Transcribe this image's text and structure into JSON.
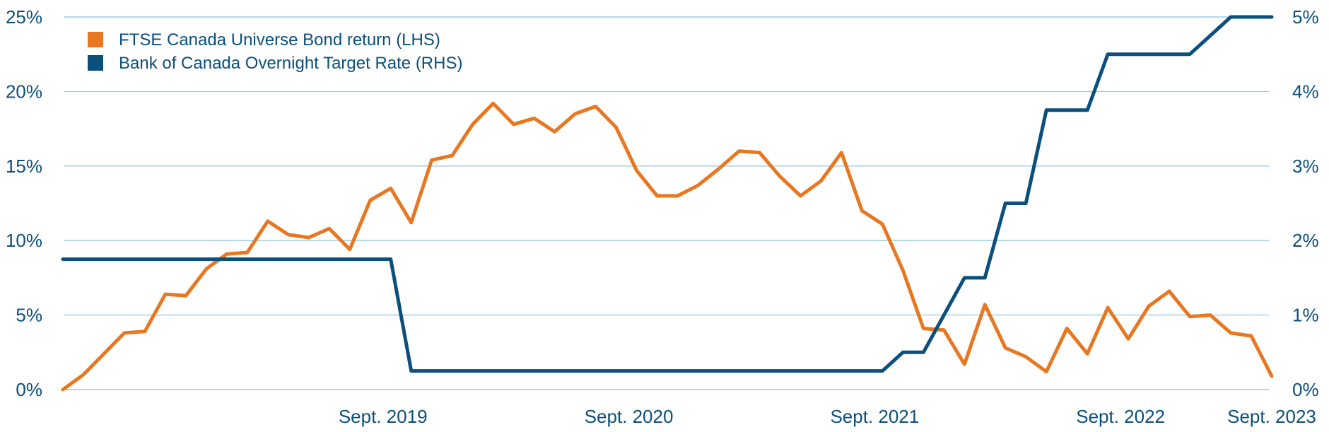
{
  "chart_data": {
    "type": "line",
    "title": "",
    "xlabel": "",
    "ylabel_left": "",
    "ylabel_right": "",
    "x_tick_labels": [
      "Sept. 2019",
      "Sept. 2020",
      "Sept. 2021",
      "Sept. 2022",
      "Sept. 2023"
    ],
    "y_left_ticks": [
      "0%",
      "5%",
      "10%",
      "15%",
      "20%",
      "25%"
    ],
    "y_right_ticks": [
      "0%",
      "1%",
      "2%",
      "3%",
      "4%",
      "5%"
    ],
    "y_left_lim": [
      0,
      25
    ],
    "y_right_lim": [
      0,
      5
    ],
    "grid": "horizontal",
    "legend_position": "top-left",
    "series": [
      {
        "name": "FTSE Canada Universe Bond return (LHS)",
        "axis": "left",
        "color": "#e87722",
        "values": [
          0.0,
          1.0,
          2.4,
          3.8,
          3.9,
          6.4,
          6.3,
          8.1,
          9.1,
          9.2,
          11.3,
          10.4,
          10.2,
          10.8,
          9.4,
          12.7,
          13.5,
          11.2,
          15.4,
          15.7,
          17.8,
          19.2,
          17.8,
          18.2,
          17.3,
          18.5,
          19.0,
          17.6,
          14.7,
          13.0,
          13.0,
          13.7,
          14.8,
          16.0,
          15.9,
          14.3,
          13.0,
          14.0,
          15.9,
          12.0,
          11.1,
          8.0,
          4.1,
          4.0,
          1.7,
          5.7,
          2.8,
          2.2,
          1.2,
          4.1,
          2.4,
          5.5,
          3.4,
          5.6,
          6.6,
          4.9,
          5.0,
          3.8,
          3.6,
          0.9
        ]
      },
      {
        "name": "Bank of Canada Overnight Target Rate (RHS)",
        "axis": "right",
        "color": "#0b4f7c",
        "values": [
          1.75,
          1.75,
          1.75,
          1.75,
          1.75,
          1.75,
          1.75,
          1.75,
          1.75,
          1.75,
          1.75,
          1.75,
          1.75,
          1.75,
          1.75,
          1.75,
          1.75,
          0.25,
          0.25,
          0.25,
          0.25,
          0.25,
          0.25,
          0.25,
          0.25,
          0.25,
          0.25,
          0.25,
          0.25,
          0.25,
          0.25,
          0.25,
          0.25,
          0.25,
          0.25,
          0.25,
          0.25,
          0.25,
          0.25,
          0.25,
          0.25,
          0.5,
          0.5,
          1.0,
          1.5,
          1.5,
          2.5,
          2.5,
          3.75,
          3.75,
          3.75,
          4.5,
          4.5,
          4.5,
          4.5,
          4.5,
          4.75,
          5.0,
          5.0,
          5.0
        ]
      }
    ]
  }
}
